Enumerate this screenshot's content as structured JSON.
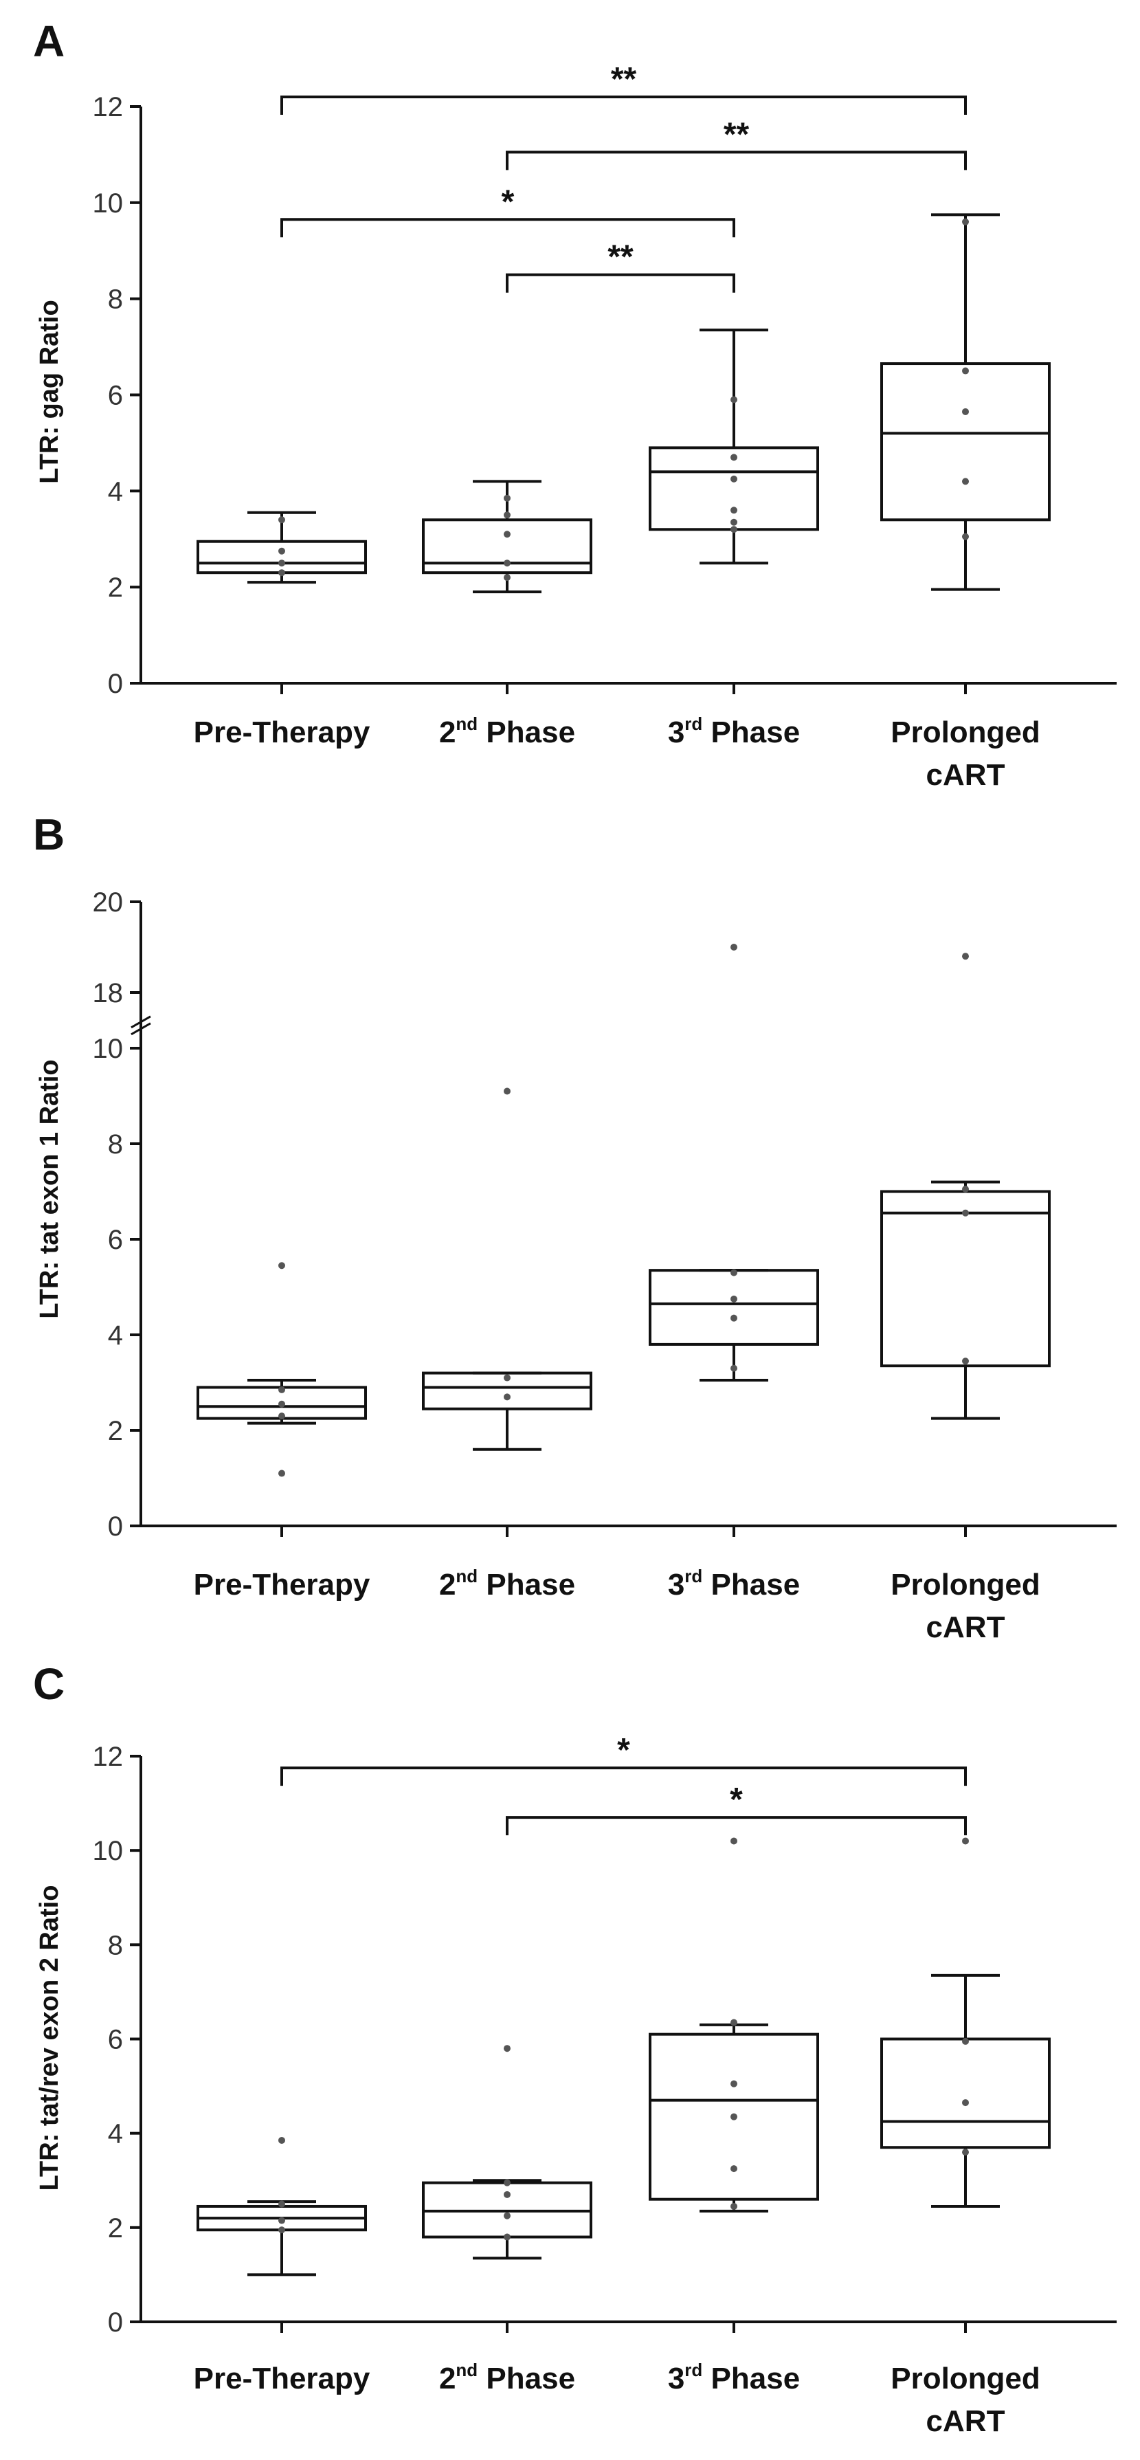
{
  "chart_data": [
    {
      "panel": "A",
      "type": "box",
      "ylabel": "LTR: gag Ratio",
      "ylim": [
        0,
        12
      ],
      "yticks": [
        "0",
        "2",
        "4",
        "6",
        "8",
        "10",
        "12"
      ],
      "categories": [
        "Pre-Therapy",
        "2nd Phase",
        "3rd Phase",
        "Prolonged cART"
      ],
      "category_labels": [
        {
          "lines": [
            {
              "text": "Pre-Therapy"
            }
          ]
        },
        {
          "lines": [
            {
              "text": "2",
              "sup": "nd",
              "rest": " Phase"
            }
          ]
        },
        {
          "lines": [
            {
              "text": "3",
              "sup": "rd",
              "rest": " Phase"
            }
          ]
        },
        {
          "lines": [
            {
              "text": "Prolonged"
            },
            {
              "text": "cART"
            }
          ]
        }
      ],
      "boxes": [
        {
          "min": 2.1,
          "q1": 2.3,
          "median": 2.5,
          "q3": 2.95,
          "max": 3.55,
          "points": [
            2.3,
            2.5,
            2.75,
            3.4
          ]
        },
        {
          "min": 1.9,
          "q1": 2.3,
          "median": 2.5,
          "q3": 3.4,
          "max": 4.2,
          "points": [
            2.2,
            2.5,
            3.1,
            3.5,
            3.85
          ]
        },
        {
          "min": 2.5,
          "q1": 3.2,
          "median": 4.4,
          "q3": 4.9,
          "max": 7.35,
          "points": [
            3.2,
            3.35,
            3.6,
            4.25,
            4.7,
            5.9
          ]
        },
        {
          "min": 1.95,
          "q1": 3.4,
          "median": 5.2,
          "q3": 6.65,
          "max": 9.75,
          "points": [
            3.05,
            4.2,
            5.65,
            6.5,
            9.6
          ]
        }
      ],
      "significance": [
        {
          "from": 0,
          "to": 3,
          "y": 12.2,
          "label": "**"
        },
        {
          "from": 1,
          "to": 3,
          "y": 11.05,
          "label": "**"
        },
        {
          "from": 0,
          "to": 2,
          "y": 9.65,
          "label": "*"
        },
        {
          "from": 1,
          "to": 2,
          "y": 8.5,
          "label": "**"
        }
      ]
    },
    {
      "panel": "B",
      "type": "box",
      "ylabel": "LTR: tat exon 1 Ratio",
      "ylim": [
        0,
        20
      ],
      "broken_axis": {
        "lower": [
          0,
          10.5
        ],
        "upper": [
          17,
          20
        ]
      },
      "yticks": [
        "0",
        "2",
        "4",
        "6",
        "8",
        "10",
        "18",
        "20"
      ],
      "categories": [
        "Pre-Therapy",
        "2nd Phase",
        "3rd Phase",
        "Prolonged cART"
      ],
      "category_labels": [
        {
          "lines": [
            {
              "text": "Pre-Therapy"
            }
          ]
        },
        {
          "lines": [
            {
              "text": "2",
              "sup": "nd",
              "rest": " Phase"
            }
          ]
        },
        {
          "lines": [
            {
              "text": "3",
              "sup": "rd",
              "rest": " Phase"
            }
          ]
        },
        {
          "lines": [
            {
              "text": "Prolonged"
            },
            {
              "text": "cART"
            }
          ]
        }
      ],
      "boxes": [
        {
          "min": 2.15,
          "q1": 2.25,
          "median": 2.5,
          "q3": 2.9,
          "max": 3.05,
          "points": [
            1.1,
            2.3,
            2.55,
            2.85,
            5.45
          ]
        },
        {
          "min": 1.6,
          "q1": 2.45,
          "median": 2.9,
          "q3": 3.2,
          "max": 3.2,
          "points": [
            2.7,
            3.1,
            9.1
          ]
        },
        {
          "min": 3.05,
          "q1": 3.8,
          "median": 4.65,
          "q3": 5.35,
          "max": 5.35,
          "points": [
            3.3,
            4.35,
            4.75,
            5.3,
            19.0
          ]
        },
        {
          "min": 2.25,
          "q1": 3.35,
          "median": 6.55,
          "q3": 7.0,
          "max": 7.2,
          "points": [
            3.45,
            6.55,
            7.05,
            18.8
          ]
        }
      ],
      "significance": []
    },
    {
      "panel": "C",
      "type": "box",
      "ylabel": "LTR: tat/rev exon 2 Ratio",
      "ylim": [
        0,
        12
      ],
      "yticks": [
        "0",
        "2",
        "4",
        "6",
        "8",
        "10",
        "12"
      ],
      "categories": [
        "Pre-Therapy",
        "2nd Phase",
        "3rd Phase",
        "Prolonged cART"
      ],
      "category_labels": [
        {
          "lines": [
            {
              "text": "Pre-Therapy"
            }
          ]
        },
        {
          "lines": [
            {
              "text": "2",
              "sup": "nd",
              "rest": " Phase"
            }
          ]
        },
        {
          "lines": [
            {
              "text": "3",
              "sup": "rd",
              "rest": " Phase"
            }
          ]
        },
        {
          "lines": [
            {
              "text": "Prolonged"
            },
            {
              "text": "cART"
            }
          ]
        }
      ],
      "boxes": [
        {
          "min": 1.0,
          "q1": 1.95,
          "median": 2.2,
          "q3": 2.45,
          "max": 2.55,
          "points": [
            1.95,
            2.15,
            2.5,
            3.85
          ]
        },
        {
          "min": 1.35,
          "q1": 1.8,
          "median": 2.35,
          "q3": 2.95,
          "max": 3.0,
          "points": [
            1.8,
            2.25,
            2.7,
            2.95,
            5.8
          ]
        },
        {
          "min": 2.35,
          "q1": 2.6,
          "median": 4.7,
          "q3": 6.1,
          "max": 6.3,
          "points": [
            2.45,
            3.25,
            4.35,
            5.05,
            6.35,
            10.2
          ]
        },
        {
          "min": 2.45,
          "q1": 3.7,
          "median": 4.25,
          "q3": 6.0,
          "max": 7.35,
          "points": [
            3.6,
            4.65,
            5.95,
            10.2
          ]
        }
      ],
      "significance": [
        {
          "from": 0,
          "to": 3,
          "y": 11.75,
          "label": "*"
        },
        {
          "from": 1,
          "to": 3,
          "y": 10.7,
          "label": "*"
        }
      ]
    }
  ]
}
